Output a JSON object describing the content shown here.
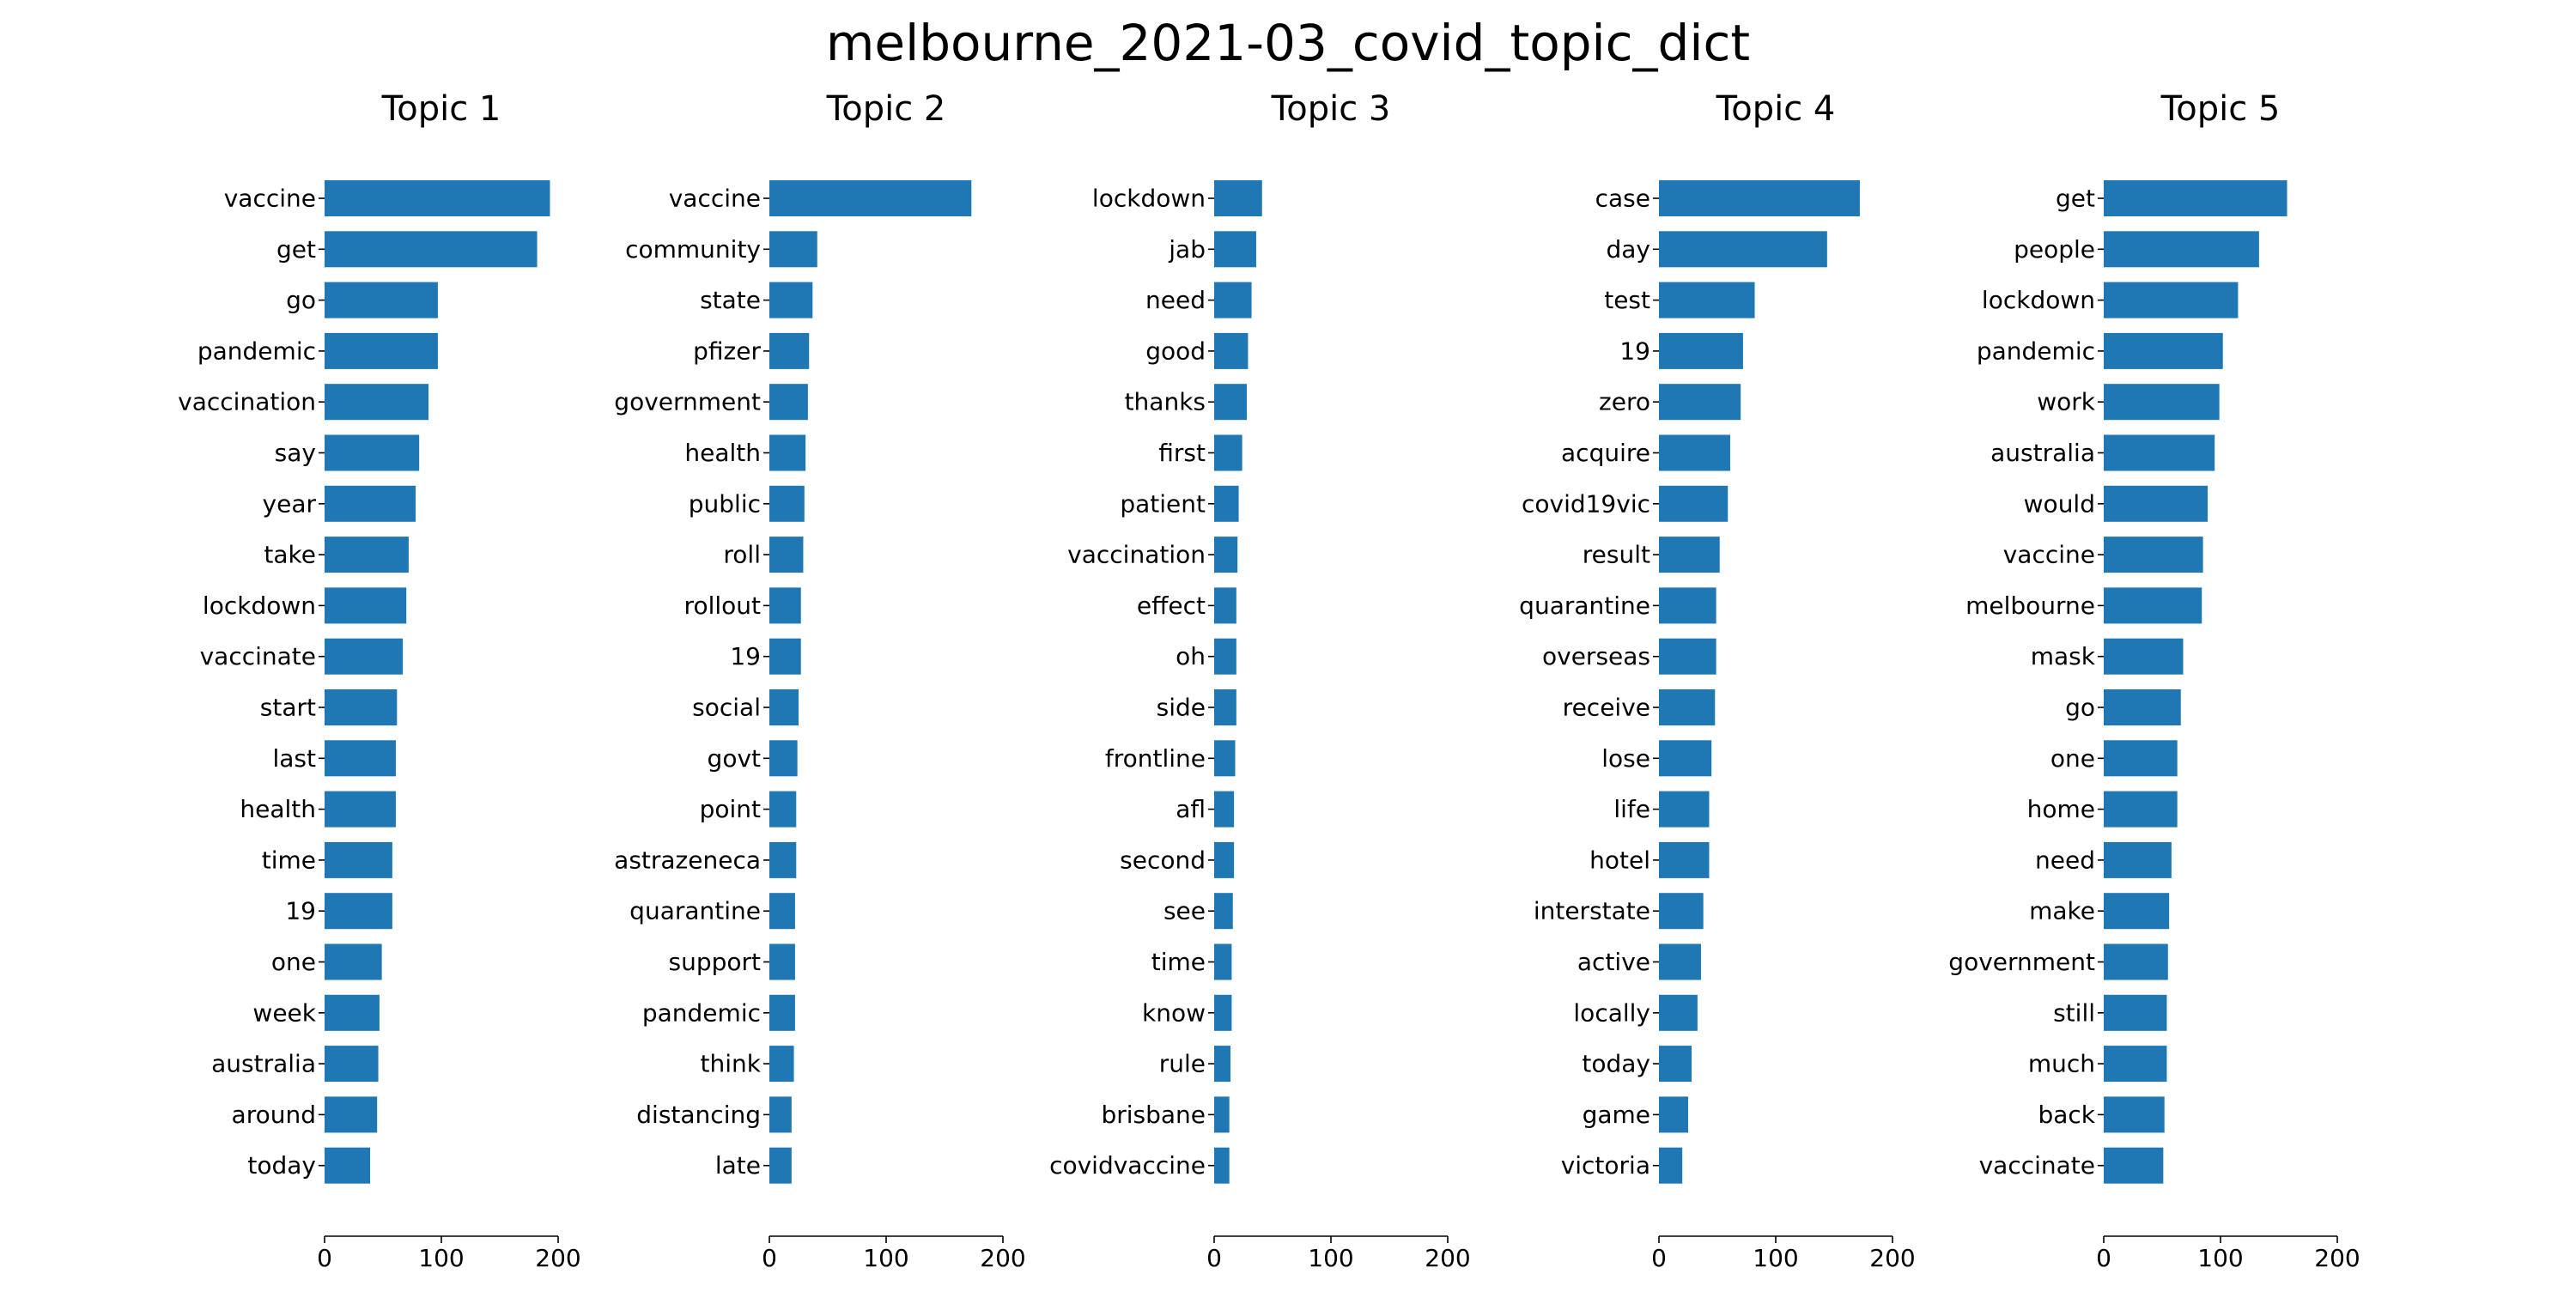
{
  "figure": {
    "suptitle": "melbourne_2021-03_covid_topic_dict"
  },
  "style": {
    "bar_color": "#1f77b4",
    "axis_color": "#000000",
    "background": "#ffffff"
  },
  "chart_data": [
    {
      "type": "bar",
      "orientation": "horizontal",
      "title": "Topic 1",
      "xlim": [
        0,
        200
      ],
      "xticks": [
        0,
        100,
        200
      ],
      "categories": [
        "vaccine",
        "get",
        "go",
        "pandemic",
        "vaccination",
        "say",
        "year",
        "take",
        "lockdown",
        "vaccinate",
        "start",
        "last",
        "health",
        "time",
        "19",
        "one",
        "week",
        "australia",
        "around",
        "today"
      ],
      "values": [
        193,
        182,
        97,
        97,
        89,
        81,
        78,
        72,
        70,
        67,
        62,
        61,
        61,
        58,
        58,
        49,
        47,
        46,
        45,
        39
      ]
    },
    {
      "type": "bar",
      "orientation": "horizontal",
      "title": "Topic 2",
      "xlim": [
        0,
        200
      ],
      "xticks": [
        0,
        100,
        200
      ],
      "categories": [
        "vaccine",
        "community",
        "state",
        "pfizer",
        "government",
        "health",
        "public",
        "roll",
        "rollout",
        "19",
        "social",
        "govt",
        "point",
        "astrazeneca",
        "quarantine",
        "support",
        "pandemic",
        "think",
        "distancing",
        "late"
      ],
      "values": [
        173,
        41,
        37,
        34,
        33,
        31,
        30,
        29,
        27,
        27,
        25,
        24,
        23,
        23,
        22,
        22,
        22,
        21,
        19,
        19
      ]
    },
    {
      "type": "bar",
      "orientation": "horizontal",
      "title": "Topic 3",
      "xlim": [
        0,
        200
      ],
      "xticks": [
        0,
        100,
        200
      ],
      "categories": [
        "lockdown",
        "jab",
        "need",
        "good",
        "thanks",
        "first",
        "patient",
        "vaccination",
        "effect",
        "oh",
        "side",
        "frontline",
        "afl",
        "second",
        "see",
        "time",
        "know",
        "rule",
        "brisbane",
        "covidvaccine"
      ],
      "values": [
        41,
        36,
        32,
        29,
        28,
        24,
        21,
        20,
        19,
        19,
        19,
        18,
        17,
        17,
        16,
        15,
        15,
        14,
        13,
        13
      ]
    },
    {
      "type": "bar",
      "orientation": "horizontal",
      "title": "Topic 4",
      "xlim": [
        0,
        200
      ],
      "xticks": [
        0,
        100,
        200
      ],
      "categories": [
        "case",
        "day",
        "test",
        "19",
        "zero",
        "acquire",
        "covid19vic",
        "result",
        "quarantine",
        "overseas",
        "receive",
        "lose",
        "life",
        "hotel",
        "interstate",
        "active",
        "locally",
        "today",
        "game",
        "victoria"
      ],
      "values": [
        172,
        144,
        82,
        72,
        70,
        61,
        59,
        52,
        49,
        49,
        48,
        45,
        43,
        43,
        38,
        36,
        33,
        28,
        25,
        20
      ]
    },
    {
      "type": "bar",
      "orientation": "horizontal",
      "title": "Topic 5",
      "xlim": [
        0,
        200
      ],
      "xticks": [
        0,
        100,
        200
      ],
      "categories": [
        "get",
        "people",
        "lockdown",
        "pandemic",
        "work",
        "australia",
        "would",
        "vaccine",
        "melbourne",
        "mask",
        "go",
        "one",
        "home",
        "need",
        "make",
        "government",
        "still",
        "much",
        "back",
        "vaccinate"
      ],
      "values": [
        157,
        133,
        115,
        102,
        99,
        95,
        89,
        85,
        84,
        68,
        66,
        63,
        63,
        58,
        56,
        55,
        54,
        54,
        52,
        51
      ]
    }
  ]
}
